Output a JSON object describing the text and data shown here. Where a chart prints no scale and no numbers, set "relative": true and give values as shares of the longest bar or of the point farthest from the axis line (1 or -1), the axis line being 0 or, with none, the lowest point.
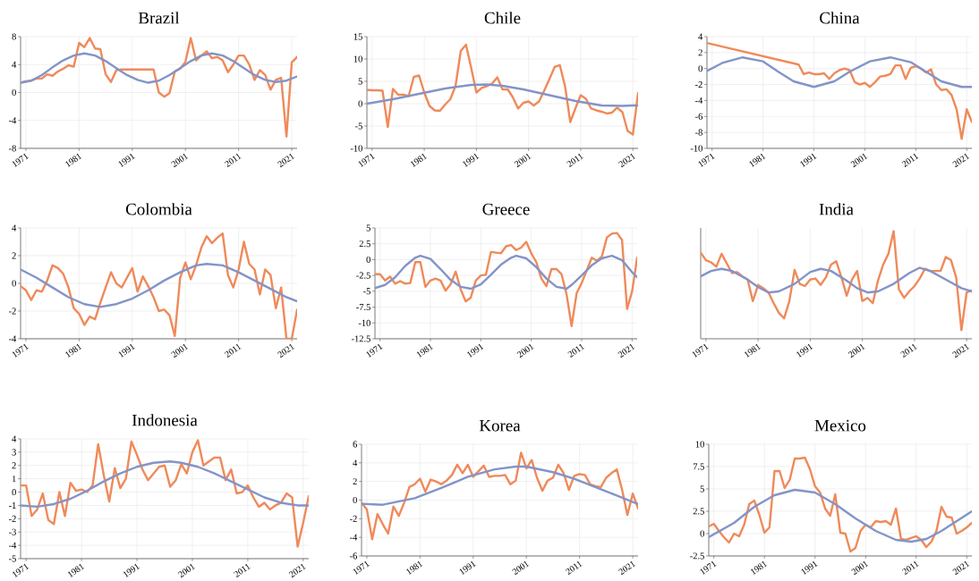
{
  "chart_data": [
    {
      "type": "line",
      "title": "Brazil",
      "grid": true,
      "xlim": [
        1970,
        2022
      ],
      "xticks": [
        1971,
        1981,
        1991,
        2001,
        2011,
        2021
      ],
      "ylim": [
        -8,
        8
      ],
      "yticks": [
        -8,
        -4,
        0,
        4,
        8
      ],
      "x": [
        1970,
        1971,
        1972,
        1973,
        1974,
        1975,
        1976,
        1977,
        1978,
        1979,
        1980,
        1981,
        1982,
        1983,
        1984,
        1985,
        1986,
        1987,
        1988,
        1989,
        1990,
        1991,
        1992,
        1993,
        1994,
        1995,
        1996,
        1997,
        1998,
        1999,
        2000,
        2001,
        2002,
        2003,
        2004,
        2005,
        2006,
        2007,
        2008,
        2009,
        2010,
        2011,
        2012,
        2013,
        2014,
        2015,
        2016,
        2017,
        2018,
        2019,
        2020,
        2021,
        2022
      ],
      "series": [
        {
          "color": "#ef8a5a",
          "values": [
            1.4,
            1.6,
            1.7,
            2.0,
            2.0,
            2.6,
            2.4,
            3.0,
            3.4,
            3.9,
            3.7,
            7.1,
            6.5,
            7.8,
            6.3,
            6.2,
            2.6,
            1.5,
            3.2,
            3.3,
            3.3,
            3.3,
            3.3,
            3.3,
            3.3,
            3.3,
            0.0,
            -0.6,
            -0.1,
            3.0,
            3.4,
            4.4,
            7.8,
            4.6,
            5.3,
            5.9,
            4.9,
            5.1,
            4.6,
            2.9,
            4.0,
            5.3,
            5.3,
            4.0,
            1.8,
            3.2,
            2.5,
            0.4,
            1.8,
            2.1,
            -6.3,
            4.3,
            5.1
          ]
        },
        {
          "color": "#8394c8",
          "x": [
            1970,
            1972,
            1974,
            1976,
            1978,
            1980,
            1982,
            1984,
            1986,
            1988,
            1990,
            1992,
            1994,
            1996,
            1998,
            2000,
            2002,
            2004,
            2006,
            2008,
            2010,
            2012,
            2014,
            2016,
            2018,
            2020,
            2022
          ],
          "values": [
            1.4,
            1.7,
            2.5,
            3.6,
            4.6,
            5.3,
            5.6,
            5.3,
            4.5,
            3.5,
            2.5,
            1.8,
            1.4,
            1.7,
            2.5,
            3.5,
            4.5,
            5.3,
            5.6,
            5.3,
            4.5,
            3.5,
            2.5,
            1.8,
            1.5,
            1.7,
            2.3
          ]
        }
      ]
    },
    {
      "type": "line",
      "title": "Chile",
      "grid": true,
      "xlim": [
        1970,
        2022
      ],
      "xticks": [
        1971,
        1981,
        1991,
        2001,
        2011,
        2021
      ],
      "ylim": [
        -10,
        15
      ],
      "yticks": [
        -10,
        -5,
        0,
        5,
        10,
        15
      ],
      "x": [
        1970,
        1971,
        1972,
        1973,
        1974,
        1975,
        1976,
        1977,
        1978,
        1979,
        1980,
        1981,
        1982,
        1983,
        1984,
        1985,
        1986,
        1987,
        1988,
        1989,
        1990,
        1991,
        1992,
        1993,
        1994,
        1995,
        1996,
        1997,
        1998,
        1999,
        2000,
        2001,
        2002,
        2003,
        2004,
        2005,
        2006,
        2007,
        2008,
        2009,
        2010,
        2011,
        2012,
        2013,
        2014,
        2015,
        2016,
        2017,
        2018,
        2019,
        2020,
        2021,
        2022
      ],
      "series": [
        {
          "color": "#ef8a5a",
          "values": [
            3.1,
            3.0,
            3.0,
            2.9,
            -5.2,
            3.3,
            2.0,
            2.0,
            1.7,
            6.0,
            6.3,
            2.5,
            -0.5,
            -1.5,
            -1.6,
            -0.2,
            1.0,
            4.0,
            11.8,
            13.2,
            8.0,
            2.5,
            3.5,
            3.9,
            4.5,
            5.9,
            3.2,
            3.2,
            1.4,
            -1.1,
            0.2,
            0.5,
            -0.4,
            0.5,
            2.9,
            5.5,
            8.2,
            8.6,
            3.9,
            -4.1,
            -1.0,
            1.9,
            1.1,
            -1.1,
            -1.5,
            -1.8,
            -2.2,
            -2.0,
            -0.9,
            -1.9,
            -6.1,
            -6.9,
            2.4
          ]
        },
        {
          "color": "#8394c8",
          "x": [
            1970,
            1975,
            1980,
            1985,
            1990,
            1993,
            1996,
            2000,
            2005,
            2010,
            2015,
            2019,
            2021,
            2022
          ],
          "values": [
            0.0,
            1.0,
            2.2,
            3.4,
            4.2,
            4.3,
            4.0,
            3.2,
            1.9,
            0.6,
            -0.4,
            -0.5,
            -0.4,
            -0.4
          ]
        }
      ]
    },
    {
      "type": "line",
      "title": "China",
      "grid": true,
      "xlim": [
        1970,
        2022
      ],
      "xticks": [
        1971,
        1981,
        1991,
        2001,
        2011,
        2021
      ],
      "ylim": [
        -10,
        4
      ],
      "yticks": [
        -10,
        -8,
        -6,
        -4,
        -2,
        0,
        2,
        4
      ],
      "series": [
        {
          "color": "#ef8a5a",
          "x": [
            1970,
            1988,
            1989,
            1990,
            1991,
            1992,
            1993,
            1994,
            1995,
            1996,
            1997,
            1998,
            1999,
            2000,
            2001,
            2002,
            2003,
            2004,
            2005,
            2006,
            2007,
            2008,
            2009,
            2010,
            2011,
            2012,
            2013,
            2014,
            2015,
            2016,
            2017,
            2018,
            2019,
            2020,
            2021,
            2022
          ],
          "values": [
            3.2,
            0.5,
            -0.7,
            -0.5,
            -0.7,
            -0.7,
            -0.6,
            -1.3,
            -0.6,
            -0.2,
            0.0,
            -0.2,
            -1.7,
            -2.0,
            -1.8,
            -2.3,
            -1.7,
            -1.0,
            -0.9,
            -0.7,
            0.4,
            0.4,
            -1.3,
            0.1,
            0.3,
            0.0,
            -0.5,
            -0.1,
            -2.0,
            -2.7,
            -2.6,
            -3.3,
            -5.1,
            -8.8,
            -5.1,
            -6.7
          ]
        },
        {
          "color": "#8394c8",
          "x": [
            1970,
            1973,
            1977,
            1981,
            1984,
            1987,
            1991,
            1995,
            1998,
            2002,
            2006,
            2010,
            2013,
            2016,
            2020,
            2022
          ],
          "values": [
            -0.3,
            0.7,
            1.4,
            0.9,
            -0.4,
            -1.6,
            -2.3,
            -1.6,
            -0.4,
            0.9,
            1.4,
            0.8,
            -0.4,
            -1.6,
            -2.3,
            -2.3
          ]
        }
      ]
    },
    {
      "type": "line",
      "title": "Colombia",
      "grid": true,
      "xlim": [
        1970,
        2022
      ],
      "xticks": [
        1971,
        1981,
        1991,
        2001,
        2011,
        2021
      ],
      "ylim": [
        -4,
        4
      ],
      "yticks": [
        -4,
        -2,
        0,
        2,
        4
      ],
      "x": [
        1970,
        1971,
        1972,
        1973,
        1974,
        1975,
        1976,
        1977,
        1978,
        1979,
        1980,
        1981,
        1982,
        1983,
        1984,
        1985,
        1986,
        1987,
        1988,
        1989,
        1990,
        1991,
        1992,
        1993,
        1994,
        1995,
        1996,
        1997,
        1998,
        1999,
        2000,
        2001,
        2002,
        2003,
        2004,
        2005,
        2006,
        2007,
        2008,
        2009,
        2010,
        2011,
        2012,
        2013,
        2014,
        2015,
        2016,
        2017,
        2018,
        2019,
        2020,
        2021,
        2022
      ],
      "series": [
        {
          "color": "#ef8a5a",
          "values": [
            -0.2,
            -0.5,
            -1.2,
            -0.5,
            -0.6,
            0.2,
            1.3,
            1.1,
            0.7,
            -0.3,
            -1.8,
            -2.2,
            -3.0,
            -2.4,
            -2.6,
            -1.4,
            -0.3,
            0.8,
            0.0,
            -0.3,
            0.4,
            1.1,
            -0.6,
            0.5,
            -0.2,
            -1.0,
            -2.0,
            -1.9,
            -2.3,
            -3.8,
            0.4,
            1.5,
            0.3,
            1.3,
            2.6,
            3.4,
            2.9,
            3.3,
            3.6,
            0.6,
            -0.3,
            1.0,
            3.0,
            1.4,
            1.0,
            -0.8,
            1.0,
            0.6,
            -1.8,
            -0.3,
            -4.0,
            -4.0,
            -1.9
          ]
        },
        {
          "color": "#8394c8",
          "x": [
            1970,
            1973,
            1976,
            1979,
            1982,
            1985,
            1988,
            1991,
            1994,
            1997,
            2000,
            2003,
            2005,
            2008,
            2011,
            2014,
            2017,
            2020,
            2022
          ],
          "values": [
            1.0,
            0.4,
            -0.3,
            -1.0,
            -1.5,
            -1.7,
            -1.5,
            -1.1,
            -0.5,
            0.2,
            0.8,
            1.3,
            1.4,
            1.3,
            0.8,
            0.2,
            -0.4,
            -1.0,
            -1.3
          ]
        }
      ]
    },
    {
      "type": "line",
      "title": "Greece",
      "grid": true,
      "xlim": [
        1970,
        2022
      ],
      "xticks": [
        1971,
        1981,
        1991,
        2001,
        2011,
        2021
      ],
      "ylim": [
        -12.5,
        5
      ],
      "yticks": [
        -12.5,
        -10,
        -7.5,
        -5,
        -2.5,
        0,
        2.5,
        5
      ],
      "x": [
        1970,
        1971,
        1972,
        1973,
        1974,
        1975,
        1976,
        1977,
        1978,
        1979,
        1980,
        1981,
        1982,
        1983,
        1984,
        1985,
        1986,
        1987,
        1988,
        1989,
        1990,
        1991,
        1992,
        1993,
        1994,
        1995,
        1996,
        1997,
        1998,
        1999,
        2000,
        2001,
        2002,
        2003,
        2004,
        2005,
        2006,
        2007,
        2008,
        2009,
        2010,
        2011,
        2012,
        2013,
        2014,
        2015,
        2016,
        2017,
        2018,
        2019,
        2020,
        2021,
        2022
      ],
      "series": [
        {
          "color": "#ef8a5a",
          "values": [
            -2.3,
            -2.3,
            -3.3,
            -2.7,
            -3.8,
            -3.4,
            -3.8,
            -3.7,
            -0.4,
            -0.4,
            -4.3,
            -3.3,
            -3.0,
            -3.3,
            -4.9,
            -3.9,
            -1.9,
            -4.7,
            -6.6,
            -6.0,
            -3.3,
            -2.5,
            -2.4,
            1.2,
            1.1,
            1.0,
            2.1,
            2.3,
            1.5,
            1.9,
            2.8,
            1.0,
            -0.4,
            -3.0,
            -4.2,
            -1.5,
            -1.5,
            -2.3,
            -5.5,
            -10.5,
            -5.3,
            -3.7,
            -1.7,
            0.3,
            -0.2,
            0.5,
            3.5,
            4.1,
            4.2,
            3.1,
            -7.8,
            -5.0,
            0.3
          ]
        },
        {
          "color": "#8394c8",
          "x": [
            1970,
            1972,
            1974,
            1976,
            1978,
            1979,
            1981,
            1983,
            1985,
            1987,
            1989,
            1991,
            1993,
            1995,
            1997,
            1998,
            2000,
            2002,
            2004,
            2006,
            2008,
            2009,
            2011,
            2013,
            2015,
            2017,
            2019,
            2021,
            2022
          ],
          "values": [
            -4.5,
            -4.0,
            -2.8,
            -1.0,
            0.3,
            0.6,
            0.1,
            -1.5,
            -3.2,
            -4.3,
            -4.6,
            -3.9,
            -2.4,
            -0.8,
            0.3,
            0.6,
            0.2,
            -1.2,
            -3.0,
            -4.3,
            -4.6,
            -4.0,
            -2.5,
            -0.9,
            0.2,
            0.6,
            -0.1,
            -2.0,
            -2.8
          ]
        }
      ]
    },
    {
      "type": "line",
      "title": "India",
      "grid": "x",
      "relative": true,
      "xlim": [
        1970,
        2022
      ],
      "xticks": [
        1971,
        1981,
        1991,
        2001,
        2011,
        2021
      ],
      "x": [
        1970,
        1971,
        1972,
        1973,
        1974,
        1975,
        1976,
        1977,
        1978,
        1979,
        1980,
        1981,
        1982,
        1983,
        1984,
        1985,
        1986,
        1987,
        1988,
        1989,
        1990,
        1991,
        1992,
        1993,
        1994,
        1995,
        1996,
        1997,
        1998,
        1999,
        2000,
        2001,
        2002,
        2003,
        2004,
        2005,
        2006,
        2007,
        2008,
        2009,
        2010,
        2011,
        2012,
        2013,
        2014,
        2015,
        2016,
        2017,
        2018,
        2019,
        2020,
        2021,
        2022
      ],
      "series": [
        {
          "color": "#ef8a5a",
          "values": [
            0.8,
            0.73,
            0.71,
            0.67,
            0.79,
            0.7,
            0.61,
            0.62,
            0.58,
            0.55,
            0.35,
            0.5,
            0.47,
            0.43,
            0.33,
            0.24,
            0.19,
            0.35,
            0.64,
            0.51,
            0.49,
            0.55,
            0.56,
            0.5,
            0.57,
            0.69,
            0.72,
            0.57,
            0.4,
            0.55,
            0.63,
            0.35,
            0.38,
            0.33,
            0.54,
            0.69,
            0.79,
            1.0,
            0.46,
            0.38,
            0.44,
            0.49,
            0.56,
            0.65,
            0.63,
            0.63,
            0.63,
            0.76,
            0.73,
            0.57,
            0.08,
            0.43,
            0.45
          ]
        },
        {
          "color": "#8394c8",
          "x": [
            1970,
            1972,
            1974,
            1976,
            1979,
            1981,
            1983,
            1985,
            1988,
            1991,
            1993,
            1995,
            1998,
            2000,
            2002,
            2004,
            2007,
            2010,
            2012,
            2014,
            2017,
            2020,
            2022
          ],
          "values": [
            0.58,
            0.63,
            0.65,
            0.63,
            0.55,
            0.48,
            0.43,
            0.44,
            0.51,
            0.62,
            0.65,
            0.63,
            0.54,
            0.47,
            0.43,
            0.44,
            0.51,
            0.61,
            0.66,
            0.63,
            0.55,
            0.47,
            0.44
          ]
        }
      ]
    },
    {
      "type": "line",
      "title": "Indonesia",
      "grid": true,
      "xlim": [
        1970,
        2022
      ],
      "xticks": [
        1971,
        1981,
        1991,
        2001,
        2011,
        2021
      ],
      "ylim": [
        -5,
        4
      ],
      "yticks": [
        -5,
        -4,
        -3,
        -2,
        -1,
        0,
        1,
        2,
        3,
        4
      ],
      "x": [
        1970,
        1971,
        1972,
        1973,
        1974,
        1975,
        1976,
        1977,
        1978,
        1979,
        1980,
        1981,
        1982,
        1983,
        1984,
        1985,
        1986,
        1987,
        1988,
        1989,
        1990,
        1991,
        1992,
        1993,
        1994,
        1995,
        1996,
        1997,
        1998,
        1999,
        2000,
        2001,
        2002,
        2003,
        2004,
        2005,
        2006,
        2007,
        2008,
        2009,
        2010,
        2011,
        2012,
        2013,
        2014,
        2015,
        2016,
        2017,
        2018,
        2019,
        2020,
        2021,
        2022
      ],
      "series": [
        {
          "color": "#ef8a5a",
          "values": [
            0.5,
            0.5,
            -1.8,
            -1.3,
            -0.1,
            -2.1,
            -2.4,
            0.0,
            -1.8,
            0.7,
            0.1,
            0.2,
            0.0,
            0.5,
            3.6,
            1.3,
            -0.7,
            1.8,
            0.3,
            1.0,
            3.8,
            2.8,
            1.7,
            0.9,
            1.4,
            1.9,
            2.0,
            0.4,
            0.9,
            2.1,
            1.4,
            3.0,
            3.9,
            2.0,
            2.3,
            2.6,
            2.6,
            0.9,
            1.7,
            -0.1,
            0.0,
            0.5,
            -0.4,
            -1.1,
            -0.8,
            -1.3,
            -1.0,
            -0.8,
            -0.1,
            -0.4,
            -4.1,
            -2.3,
            -0.3
          ]
        },
        {
          "color": "#8394c8",
          "x": [
            1970,
            1973,
            1976,
            1979,
            1982,
            1985,
            1988,
            1991,
            1994,
            1997,
            1999,
            2002,
            2005,
            2008,
            2011,
            2014,
            2017,
            2020,
            2022
          ],
          "values": [
            -1.0,
            -1.1,
            -0.9,
            -0.5,
            0.1,
            0.8,
            1.4,
            1.9,
            2.2,
            2.3,
            2.2,
            1.9,
            1.4,
            0.8,
            0.2,
            -0.4,
            -0.8,
            -1.0,
            -1.0
          ]
        }
      ]
    },
    {
      "type": "line",
      "title": "Korea",
      "grid": true,
      "xlim": [
        1970,
        2022
      ],
      "xticks": [
        1971,
        1981,
        1991,
        2001,
        2011,
        2021
      ],
      "ylim": [
        -6,
        6
      ],
      "yticks": [
        -6,
        -4,
        -2,
        0,
        2,
        4,
        6
      ],
      "x": [
        1970,
        1971,
        1972,
        1973,
        1974,
        1975,
        1976,
        1977,
        1978,
        1979,
        1980,
        1981,
        1982,
        1983,
        1984,
        1985,
        1986,
        1987,
        1988,
        1989,
        1990,
        1991,
        1992,
        1993,
        1994,
        1995,
        1996,
        1997,
        1998,
        1999,
        2000,
        2001,
        2002,
        2003,
        2004,
        2005,
        2006,
        2007,
        2008,
        2009,
        2010,
        2011,
        2012,
        2013,
        2014,
        2015,
        2016,
        2017,
        2018,
        2019,
        2020,
        2021,
        2022
      ],
      "series": [
        {
          "color": "#ef8a5a",
          "values": [
            -0.3,
            -1.0,
            -4.2,
            -1.5,
            -2.6,
            -3.6,
            -0.7,
            -1.7,
            -0.3,
            1.4,
            1.7,
            2.3,
            0.9,
            2.2,
            2.0,
            1.7,
            2.1,
            2.7,
            3.8,
            2.9,
            3.8,
            2.5,
            3.1,
            3.7,
            2.5,
            2.6,
            2.6,
            2.7,
            1.7,
            2.1,
            5.1,
            3.4,
            4.3,
            2.4,
            1.0,
            2.1,
            2.4,
            3.8,
            2.9,
            1.1,
            2.6,
            2.8,
            2.7,
            1.7,
            1.5,
            1.4,
            2.4,
            2.9,
            3.3,
            1.1,
            -1.6,
            0.7,
            -0.9
          ]
        },
        {
          "color": "#8394c8",
          "x": [
            1970,
            1974,
            1980,
            1985,
            1990,
            1995,
            1999,
            2001,
            2006,
            2010,
            2014,
            2018,
            2021,
            2022
          ],
          "values": [
            -0.4,
            -0.5,
            0.2,
            1.3,
            2.5,
            3.3,
            3.6,
            3.6,
            3.0,
            2.3,
            1.4,
            0.5,
            -0.2,
            -0.4
          ]
        }
      ]
    },
    {
      "type": "line",
      "title": "Mexico",
      "grid": true,
      "xlim": [
        1970,
        2022
      ],
      "xticks": [
        1971,
        1981,
        1991,
        2001,
        2011,
        2021
      ],
      "ylim": [
        -2.5,
        10
      ],
      "yticks": [
        -2.5,
        0,
        2.5,
        5,
        7.5,
        10
      ],
      "x": [
        1970,
        1971,
        1972,
        1973,
        1974,
        1975,
        1976,
        1977,
        1978,
        1979,
        1980,
        1981,
        1982,
        1983,
        1984,
        1985,
        1986,
        1987,
        1988,
        1989,
        1990,
        1991,
        1992,
        1993,
        1994,
        1995,
        1996,
        1997,
        1998,
        1999,
        2000,
        2001,
        2002,
        2003,
        2004,
        2005,
        2006,
        2007,
        2008,
        2009,
        2010,
        2011,
        2012,
        2013,
        2014,
        2015,
        2016,
        2017,
        2018,
        2019,
        2020,
        2021,
        2022
      ],
      "series": [
        {
          "color": "#ef8a5a",
          "values": [
            0.8,
            1.1,
            0.3,
            -0.4,
            -1.0,
            0.0,
            -0.3,
            1.0,
            3.3,
            3.7,
            2.1,
            0.1,
            0.7,
            7.0,
            7.0,
            5.1,
            6.0,
            8.4,
            8.4,
            8.5,
            7.2,
            5.3,
            4.6,
            2.8,
            2.0,
            4.4,
            0.1,
            0.0,
            -2.0,
            -1.6,
            0.3,
            1.0,
            0.7,
            1.4,
            1.3,
            1.4,
            1.0,
            2.8,
            -0.6,
            -0.7,
            -0.5,
            -0.3,
            -0.7,
            -1.5,
            -0.9,
            0.3,
            3.0,
            1.9,
            1.8,
            0.0,
            0.3,
            0.7,
            1.2
          ]
        },
        {
          "color": "#8394c8",
          "x": [
            1970,
            1975,
            1979,
            1983,
            1987,
            1991,
            1995,
            1999,
            2003,
            2007,
            2010,
            2013,
            2016,
            2019,
            2022
          ],
          "values": [
            -0.4,
            1.2,
            3.0,
            4.3,
            4.9,
            4.6,
            3.3,
            1.7,
            0.3,
            -0.7,
            -0.9,
            -0.6,
            0.3,
            1.4,
            2.5
          ]
        }
      ]
    }
  ]
}
